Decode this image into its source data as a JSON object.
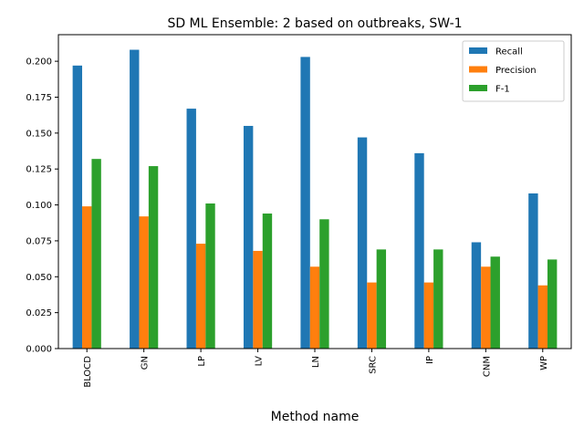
{
  "chart_data": {
    "type": "bar",
    "title": "SD ML Ensemble: 2 based on outbreaks, SW-1",
    "xlabel": "Method name",
    "ylabel": "",
    "categories": [
      "BLOCD",
      "GN",
      "LP",
      "LV",
      "LN",
      "SRC",
      "IP",
      "CNM",
      "WP"
    ],
    "series": [
      {
        "name": "Recall",
        "color": "#1f77b4",
        "values": [
          0.197,
          0.208,
          0.167,
          0.155,
          0.203,
          0.147,
          0.136,
          0.074,
          0.108
        ]
      },
      {
        "name": "Precision",
        "color": "#ff7f0e",
        "values": [
          0.099,
          0.092,
          0.073,
          0.068,
          0.057,
          0.046,
          0.046,
          0.057,
          0.044
        ]
      },
      {
        "name": "F-1",
        "color": "#2ca02c",
        "values": [
          0.132,
          0.127,
          0.101,
          0.094,
          0.09,
          0.069,
          0.069,
          0.064,
          0.062
        ]
      }
    ],
    "ylim": [
      0,
      0.2185
    ],
    "yticks": [
      "0.000",
      "0.025",
      "0.050",
      "0.075",
      "0.100",
      "0.125",
      "0.150",
      "0.175",
      "0.200"
    ],
    "legend_position": "top-right",
    "grid": false
  }
}
